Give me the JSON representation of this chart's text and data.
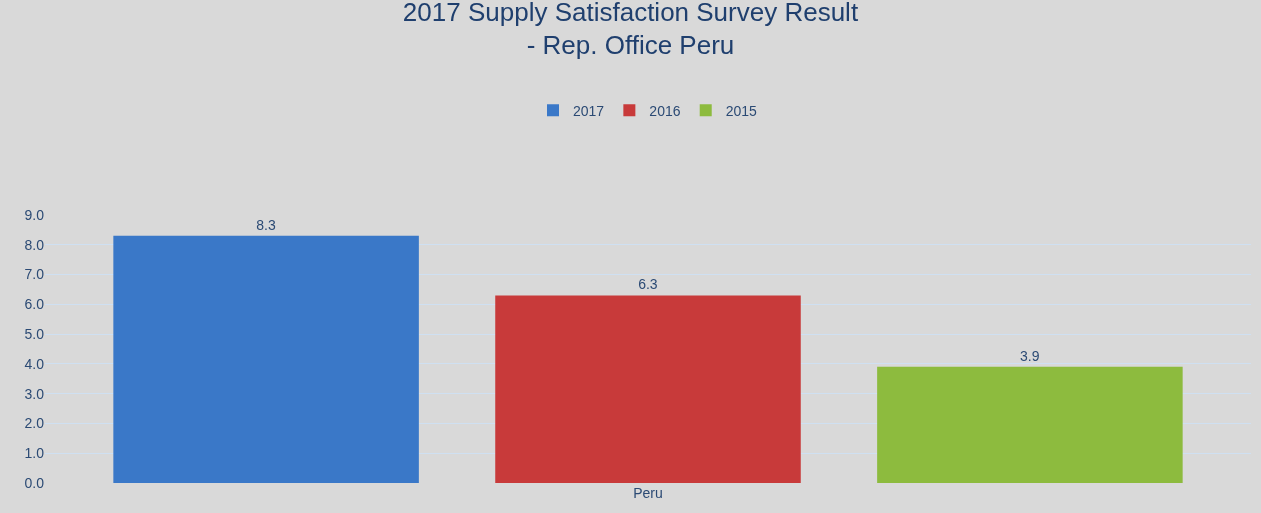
{
  "chart_data": {
    "type": "bar",
    "title": "2017 Supply Satisfaction Survey Result\n- Rep. Office Peru",
    "categories": [
      "Peru"
    ],
    "series": [
      {
        "name": "2017",
        "color": "#3a78c8",
        "values": [
          8.3
        ]
      },
      {
        "name": "2016",
        "color": "#c83a3a",
        "values": [
          6.3
        ]
      },
      {
        "name": "2015",
        "color": "#8dbb3e",
        "values": [
          3.9
        ]
      }
    ],
    "ylim": [
      0,
      9
    ],
    "yticks": [
      {
        "value": 0,
        "label": "0.0"
      },
      {
        "value": 1,
        "label": "1.0"
      },
      {
        "value": 2,
        "label": "2.0"
      },
      {
        "value": 3,
        "label": "3.0"
      },
      {
        "value": 4,
        "label": "4.0"
      },
      {
        "value": 5,
        "label": "5.0"
      },
      {
        "value": 6,
        "label": "6.0"
      },
      {
        "value": 7,
        "label": "7.0"
      },
      {
        "value": 8,
        "label": "8.0"
      },
      {
        "value": 9,
        "label": "9.0"
      }
    ],
    "grid": "y",
    "legend": "top",
    "data_labels": true
  }
}
